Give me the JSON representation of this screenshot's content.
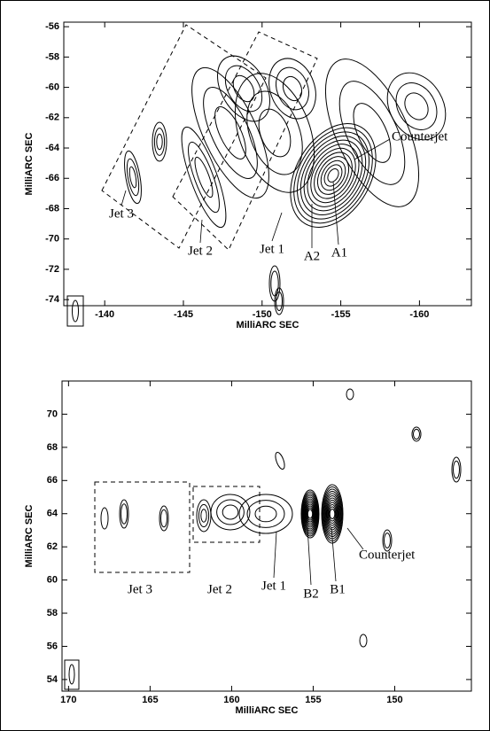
{
  "chart_data": [
    {
      "type": "contour",
      "xlabel": "MilliARC SEC",
      "ylabel": "MilliARC SEC",
      "xlim": [
        -137.4,
        -163.3
      ],
      "ylim": [
        -74.4,
        -55.7
      ],
      "xticks": [
        -140,
        -145,
        -150,
        -155,
        -160
      ],
      "yticks": [
        -56,
        -58,
        -60,
        -62,
        -64,
        -66,
        -68,
        -70,
        -72,
        -74
      ],
      "annotations": [
        "Jet 3",
        "Jet 2",
        "Jet 1",
        "A2",
        "A1",
        "Counterjet"
      ]
    },
    {
      "type": "contour",
      "xlabel": "MilliARC SEC",
      "ylabel": "MilliARC SEC",
      "xlim": [
        170.4,
        145.3
      ],
      "ylim": [
        53.3,
        72.0
      ],
      "xticks": [
        170,
        165,
        160,
        155,
        150
      ],
      "yticks": [
        54,
        56,
        58,
        60,
        62,
        64,
        66,
        68,
        70
      ],
      "annotations": [
        "Jet 3",
        "Jet 2",
        "Jet 1",
        "B2",
        "B1",
        "Counterjet"
      ]
    }
  ]
}
